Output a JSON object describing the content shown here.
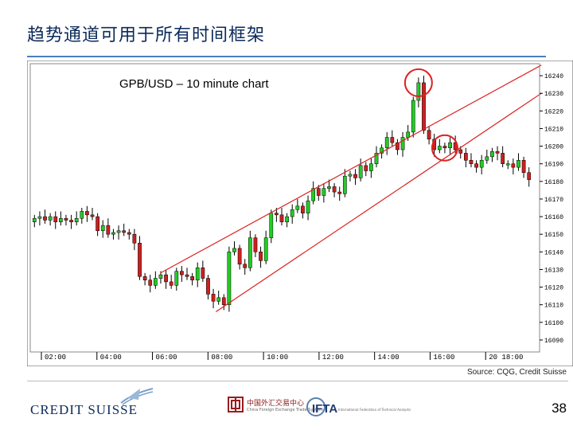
{
  "slide": {
    "title": "趋势通道可用于所有时间框架",
    "source": "Source: CQG, Credit Suisse",
    "page_number": "38"
  },
  "logos": {
    "credit_suisse": "CREDIT SUISSE",
    "china_forex": "中国外汇交易中心",
    "china_forex_sub": "China Foreign Exchange Trade System",
    "ifta": "IFTA",
    "ifta_sub": "International Federation of Technical Analysts"
  },
  "colors": {
    "up_candle": "#22cc22",
    "down_candle": "#cc2020",
    "channel_line": "#dd2222",
    "highlight_circle": "#dd2222",
    "title_color": "#0b2a5a"
  },
  "chart_data": {
    "type": "candlestick",
    "title": "GPB/USD – 10 minute chart",
    "y_ticks": [
      "16240",
      "16230",
      "16220",
      "16210",
      "16200",
      "16190",
      "16180",
      "16170",
      "16160",
      "16150",
      "16140",
      "16130",
      "16120",
      "16110",
      "16100",
      "16090"
    ],
    "x_ticks": [
      "02:00",
      "04:00",
      "06:00",
      "08:00",
      "10:00",
      "12:00",
      "14:00",
      "16:00",
      "20 18:00"
    ],
    "ylim": [
      16085,
      16245
    ],
    "candles_close": [
      16159,
      16160,
      16158,
      16160,
      16157,
      16159,
      16158,
      16157,
      16159,
      16163,
      16161,
      16160,
      16152,
      16155,
      16150,
      16151,
      16152,
      16151,
      16150,
      16145,
      16126,
      16124,
      16121,
      16125,
      16127,
      16123,
      16121,
      16129,
      16127,
      16126,
      16124,
      16131,
      16125,
      16116,
      16112,
      16114,
      16110,
      16140,
      16142,
      16133,
      16131,
      16148,
      16140,
      16135,
      16148,
      16162,
      16161,
      16157,
      16160,
      16164,
      16166,
      16162,
      16169,
      16176,
      16172,
      16176,
      16177,
      16174,
      16173,
      16183,
      16184,
      16182,
      16189,
      16186,
      16190,
      16196,
      16199,
      16205,
      16202,
      16198,
      16205,
      16208,
      16226,
      16236,
      16209,
      16204,
      16198,
      16200,
      16199,
      16202,
      16198,
      16196,
      16192,
      16190,
      16188,
      16192,
      16194,
      16197,
      16196,
      16190,
      16190,
      16188,
      16192,
      16185,
      16181
    ],
    "channel": {
      "upper": {
        "from": [
          "06:00",
          16128
        ],
        "to": [
          "20 18:00",
          16246
        ]
      },
      "lower": {
        "from": [
          "08:00",
          16106
        ],
        "to": [
          "20 18:00",
          16230
        ]
      }
    },
    "highlights": [
      "top of channel near 15:40",
      "channel support near 16:10"
    ],
    "grid": false,
    "legend": "none"
  }
}
